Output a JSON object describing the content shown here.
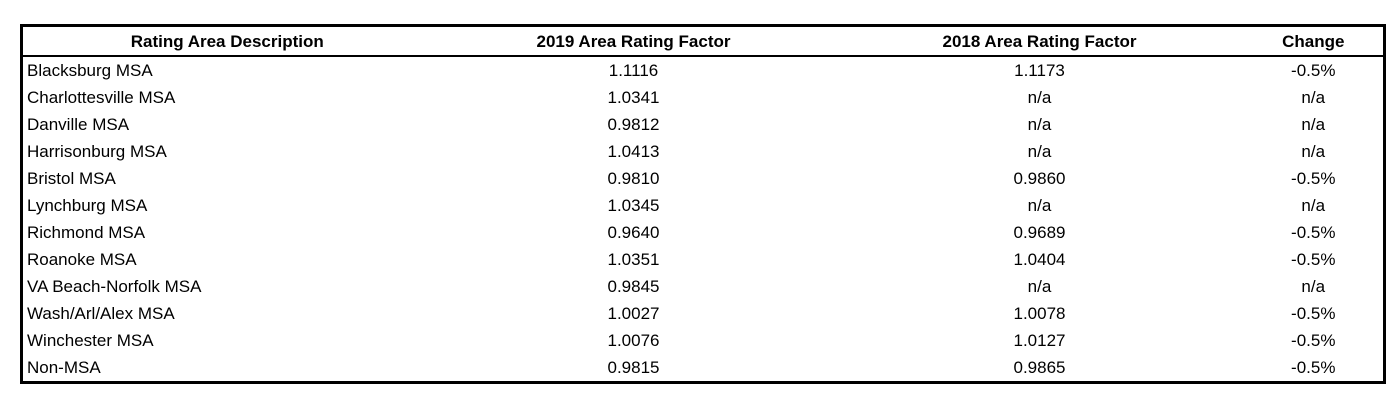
{
  "table": {
    "header": [
      "Rating Area Description",
      "2019 Area Rating Factor",
      "2018 Area Rating Factor",
      "Change"
    ],
    "rows": [
      [
        "Blacksburg MSA",
        "1.1116",
        "1.1173",
        "-0.5%"
      ],
      [
        "Charlottesville MSA",
        "1.0341",
        "n/a",
        "n/a"
      ],
      [
        "Danville MSA",
        "0.9812",
        "n/a",
        "n/a"
      ],
      [
        "Harrisonburg MSA",
        "1.0413",
        "n/a",
        "n/a"
      ],
      [
        "Bristol MSA",
        "0.9810",
        "0.9860",
        "-0.5%"
      ],
      [
        "Lynchburg MSA",
        "1.0345",
        "n/a",
        "n/a"
      ],
      [
        "Richmond MSA",
        "0.9640",
        "0.9689",
        "-0.5%"
      ],
      [
        "Roanoke MSA",
        "1.0351",
        "1.0404",
        "-0.5%"
      ],
      [
        "VA Beach-Norfolk MSA",
        "0.9845",
        "n/a",
        "n/a"
      ],
      [
        "Wash/Arl/Alex MSA",
        "1.0027",
        "1.0078",
        "-0.5%"
      ],
      [
        "Winchester MSA",
        "1.0076",
        "1.0127",
        "-0.5%"
      ],
      [
        "Non-MSA",
        "0.9815",
        "0.9865",
        "-0.5%"
      ]
    ]
  }
}
